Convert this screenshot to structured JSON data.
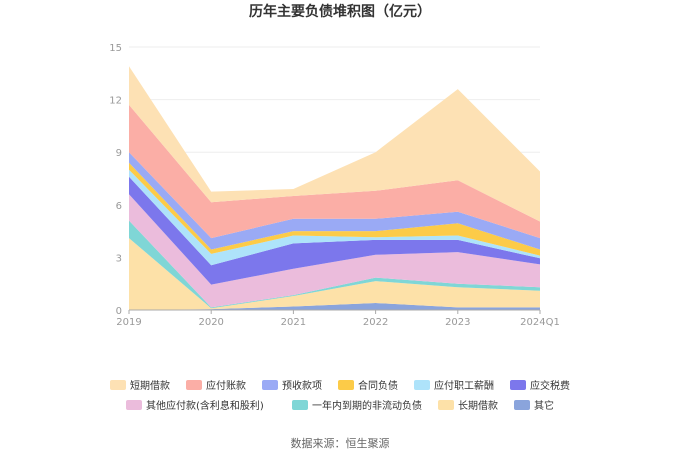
{
  "chart_data": {
    "type": "area",
    "title": "历年主要负债堆积图（亿元）",
    "stacked": true,
    "categories": [
      "2019",
      "2020",
      "2021",
      "2022",
      "2023",
      "2024Q1"
    ],
    "y_ticks": [
      "0",
      "3",
      "6",
      "9",
      "12",
      "15"
    ],
    "ylim": [
      0,
      15
    ],
    "grid": true,
    "legend_position": "bottom",
    "series": [
      {
        "name": "其它",
        "color": "#8aa4dc",
        "values": [
          0.0,
          0.05,
          0.2,
          0.4,
          0.15,
          0.15
        ]
      },
      {
        "name": "长期借款",
        "color": "#fde1a8",
        "values": [
          4.1,
          0.05,
          0.6,
          1.25,
          1.15,
          0.95
        ]
      },
      {
        "name": "一年内到期的非流动负债",
        "color": "#7fd6d6",
        "values": [
          1.0,
          0.05,
          0.05,
          0.2,
          0.2,
          0.2
        ]
      },
      {
        "name": "其他应付款(含利息和股利)",
        "color": "#ebbcdc",
        "values": [
          1.5,
          1.3,
          1.5,
          1.3,
          1.8,
          1.3
        ]
      },
      {
        "name": "应交税费",
        "color": "#7c77ec",
        "values": [
          1.0,
          1.1,
          1.45,
          0.85,
          0.7,
          0.35
        ]
      },
      {
        "name": "应付职工薪酬",
        "color": "#aee3fa",
        "values": [
          0.4,
          0.65,
          0.45,
          0.15,
          0.25,
          0.15
        ]
      },
      {
        "name": "合同负债",
        "color": "#fccb48",
        "values": [
          0.4,
          0.25,
          0.25,
          0.35,
          0.7,
          0.35
        ]
      },
      {
        "name": "预收款项",
        "color": "#9aaaf5",
        "values": [
          0.6,
          0.65,
          0.7,
          0.7,
          0.65,
          0.65
        ]
      },
      {
        "name": "应付账款",
        "color": "#fbaea6",
        "values": [
          2.7,
          2.05,
          1.3,
          1.6,
          1.8,
          0.95
        ]
      },
      {
        "name": "短期借款",
        "color": "#fde1b4",
        "values": [
          2.2,
          0.6,
          0.4,
          2.2,
          5.2,
          2.85
        ]
      }
    ],
    "legend": [
      "短期借款",
      "应付账款",
      "预收款项",
      "合同负债",
      "应付职工薪酬",
      "应交税费",
      "其他应付款(含利息和股利)",
      "一年内到期的非流动负债",
      "长期借款",
      "其它"
    ]
  },
  "source": "数据来源：恒生聚源"
}
